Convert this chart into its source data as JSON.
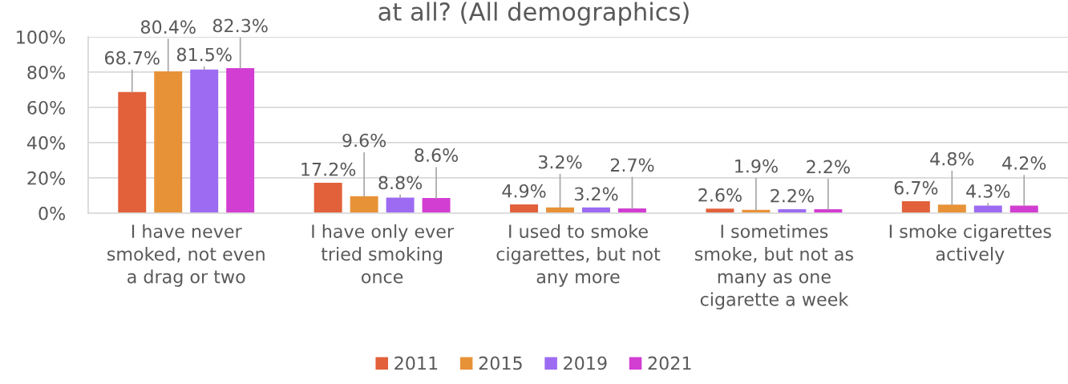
{
  "chart_data": {
    "type": "bar",
    "title": "at all? (All demographics)",
    "categories": [
      "I have never smoked, not even a drag or two",
      "I have only ever tried smoking once",
      "I used to smoke cigarettes, but not any more",
      "I sometimes smoke, but not as many as one cigarette a week",
      "I smoke cigarettes actively"
    ],
    "series": [
      {
        "name": "2011",
        "color": "#e2603a",
        "values": [
          68.7,
          17.2,
          4.9,
          2.6,
          6.7
        ],
        "value_labels": [
          "68.7%",
          "17.2%",
          "4.9%",
          "2.6%",
          "6.7%"
        ]
      },
      {
        "name": "2015",
        "color": "#e89238",
        "values": [
          80.4,
          9.6,
          3.2,
          1.9,
          4.8
        ],
        "value_labels": [
          "80.4%",
          "9.6%",
          "3.2%",
          "1.9%",
          "4.8%"
        ]
      },
      {
        "name": "2019",
        "color": "#9c6bf2",
        "values": [
          81.5,
          8.8,
          3.2,
          2.2,
          4.3
        ],
        "value_labels": [
          "81.5%",
          "8.8%",
          "3.2%",
          "2.2%",
          "4.3%"
        ]
      },
      {
        "name": "2021",
        "color": "#d23ed2",
        "values": [
          82.3,
          8.6,
          2.7,
          2.2,
          4.2
        ],
        "value_labels": [
          "82.3%",
          "8.6%",
          "2.7%",
          "2.2%",
          "4.2%"
        ]
      }
    ],
    "ylim": [
      0,
      100
    ],
    "yticks": [
      {
        "value": 0,
        "label": "0%"
      },
      {
        "value": 20,
        "label": "20%"
      },
      {
        "value": 40,
        "label": "40%"
      },
      {
        "value": 60,
        "label": "60%"
      },
      {
        "value": 80,
        "label": "80%"
      },
      {
        "value": 100,
        "label": "100%"
      }
    ],
    "grid": "y",
    "legend": "bottom"
  }
}
